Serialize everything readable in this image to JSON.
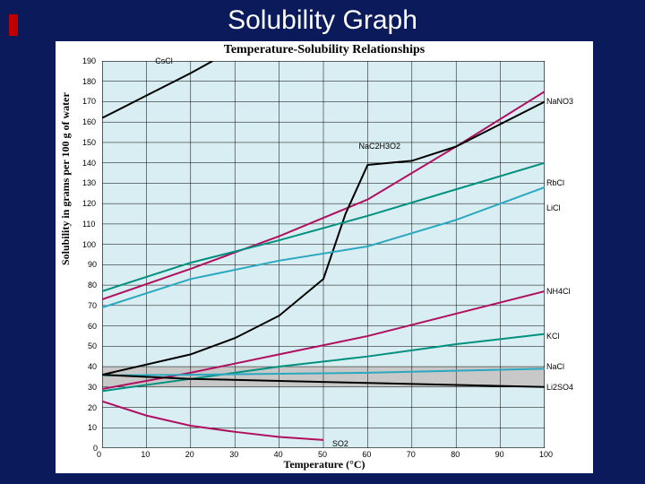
{
  "slide": {
    "title": "Solubility Graph",
    "background_color": "#0a1a5a",
    "accent_bar_color": "#c00000",
    "title_color": "#ffffff",
    "title_fontsize": 30
  },
  "chart": {
    "title": "Temperature-Solubility Relationships",
    "title_fontsize": 14,
    "title_font": "Times New Roman",
    "xlabel": "Temperature (°C)",
    "ylabel": "Solubility in grams per 100 g of water",
    "label_fontsize": 12,
    "background_color": "#ffffff",
    "plot_background_color": "#d9eef2",
    "grid_color": "#000000",
    "grid_width": 0.5,
    "gray_band": {
      "ymin": 30,
      "ymax": 40,
      "color": "#c8c8c8"
    },
    "xlim": [
      0,
      100
    ],
    "ylim": [
      0,
      190
    ],
    "xtick_step": 10,
    "ytick_step": 10,
    "tick_fontsize": 9,
    "line_width": 2,
    "series_label_fontsize": 9,
    "series": [
      {
        "name": "CsCl",
        "color": "#000000",
        "x": [
          0,
          10,
          20,
          25
        ],
        "y": [
          162,
          173,
          184,
          190
        ],
        "label_at": [
          12,
          190
        ]
      },
      {
        "name": "NaNO3",
        "color": "#b01060",
        "x": [
          0,
          20,
          40,
          60,
          80,
          100
        ],
        "y": [
          73,
          88,
          104,
          122,
          148,
          175
        ],
        "label_at": [
          102,
          170
        ]
      },
      {
        "name": "NaC2H3O2",
        "color": "#000000",
        "x": [
          0,
          20,
          30,
          40,
          50,
          55,
          60,
          70,
          80,
          100
        ],
        "y": [
          36,
          46,
          54,
          65,
          83,
          115,
          139,
          141,
          148,
          170
        ],
        "label_at": [
          58,
          148
        ]
      },
      {
        "name": "RbCl",
        "color": "#009080",
        "x": [
          0,
          20,
          40,
          60,
          80,
          100
        ],
        "y": [
          77,
          91,
          102,
          114,
          127,
          140
        ],
        "label_at": [
          102,
          130
        ]
      },
      {
        "name": "LiCl",
        "color": "#2aa8c0",
        "x": [
          0,
          20,
          40,
          60,
          80,
          100
        ],
        "y": [
          69,
          83,
          92,
          99,
          112,
          128
        ],
        "label_at": [
          102,
          118
        ]
      },
      {
        "name": "NH4Cl",
        "color": "#b01060",
        "x": [
          0,
          20,
          40,
          60,
          80,
          100
        ],
        "y": [
          29,
          37,
          46,
          55,
          66,
          77
        ],
        "label_at": [
          102,
          77
        ]
      },
      {
        "name": "KCl",
        "color": "#009080",
        "x": [
          0,
          20,
          40,
          60,
          80,
          100
        ],
        "y": [
          28,
          34,
          40,
          45,
          51,
          56
        ],
        "label_at": [
          102,
          55
        ]
      },
      {
        "name": "NaCl",
        "color": "#2aa8c0",
        "x": [
          0,
          20,
          40,
          60,
          80,
          100
        ],
        "y": [
          35.7,
          36,
          36.5,
          37,
          38,
          39
        ],
        "label_at": [
          102,
          40
        ]
      },
      {
        "name": "Li2SO4",
        "color": "#000000",
        "x": [
          0,
          20,
          40,
          60,
          80,
          100
        ],
        "y": [
          36,
          34,
          33,
          32,
          31,
          30
        ],
        "label_at": [
          102,
          30
        ]
      },
      {
        "name": "SO2",
        "color": "#b01060",
        "x": [
          0,
          10,
          20,
          30,
          40,
          50
        ],
        "y": [
          23,
          16,
          11,
          8,
          5.5,
          4
        ],
        "label_at": [
          52,
          2
        ]
      }
    ]
  }
}
